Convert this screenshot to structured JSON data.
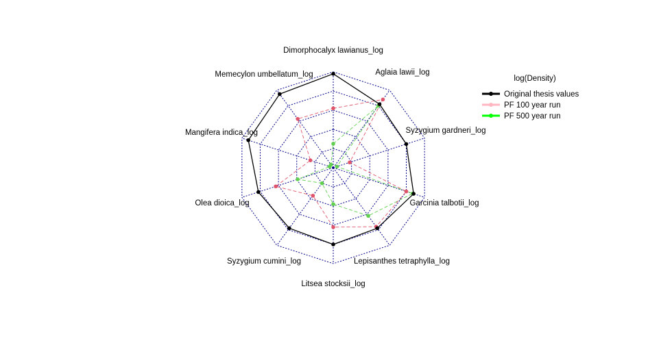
{
  "chart_data": {
    "type": "radar",
    "title": "",
    "axes": [
      "Dimorphocalyx lawianus_log",
      "Aglaia lawii_log",
      "Syzygium gardneri_log",
      "Garcinia talbotii_log",
      "Lepisanthes tetraphylla_log",
      "Litsea stocksii_log",
      "Syzygium cumini_log",
      "Olea dioica_log",
      "Mangifera indica_log",
      "Memecylon umbellatum_log"
    ],
    "grid_levels": 5,
    "range": [
      0,
      1
    ],
    "grid": true,
    "legend": {
      "title": "log(Density)",
      "placement": "right"
    },
    "series": [
      {
        "name": "Original thesis values",
        "color": "#000000",
        "line_style": "solid",
        "values": [
          0.98,
          0.82,
          0.8,
          0.88,
          0.78,
          0.8,
          0.78,
          0.82,
          0.93,
          0.95
        ]
      },
      {
        "name": "PF 100 year run",
        "color": "#DF536B",
        "legend_color": "#FFB6C1",
        "line_style": "dashed",
        "values": [
          0.62,
          0.88,
          0.18,
          0.8,
          0.76,
          0.62,
          0.36,
          0.63,
          0.25,
          0.63
        ]
      },
      {
        "name": "PF 500 year run",
        "color": "#61D04F",
        "legend_color": "#00FF00",
        "line_style": "dashed",
        "values": [
          0.25,
          0.8,
          0.04,
          0.87,
          0.62,
          0.38,
          0.2,
          0.39,
          0.04,
          0.04
        ]
      }
    ]
  }
}
